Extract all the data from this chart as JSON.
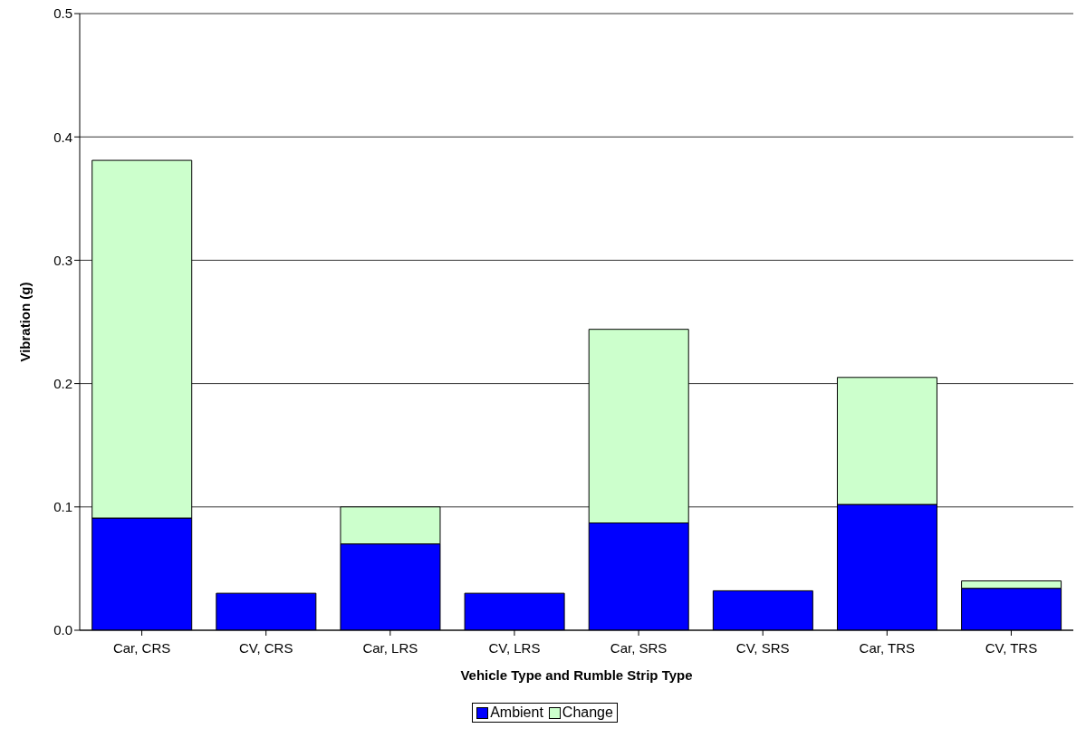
{
  "chart_data": {
    "type": "bar",
    "xlabel": "Vehicle Type and Rumble Strip Type",
    "ylabel": "Vibration (g)",
    "categories": [
      "Car, CRS",
      "CV, CRS",
      "Car, LRS",
      "CV, LRS",
      "Car, SRS",
      "CV, SRS",
      "Car, TRS",
      "CV, TRS"
    ],
    "series": [
      {
        "name": "Ambient",
        "color": "#0000ff",
        "values": [
          0.091,
          0.03,
          0.07,
          0.03,
          0.087,
          0.032,
          0.102,
          0.034
        ]
      },
      {
        "name": "Change",
        "color": "#ccffcc",
        "values": [
          0.29,
          0,
          0.03,
          0,
          0.157,
          0,
          0.103,
          0.006
        ]
      }
    ],
    "stacked": true,
    "ylim": [
      0,
      0.5
    ],
    "yticks": [
      {
        "value": 0,
        "label": "0.0"
      },
      0.1,
      0.2,
      0.3,
      0.4,
      0.5
    ],
    "grid": "y",
    "legend": "bottom"
  }
}
